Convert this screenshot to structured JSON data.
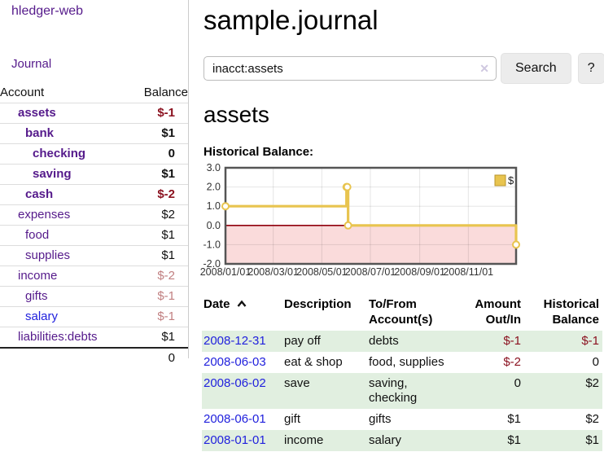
{
  "app": {
    "brand": "hledger-web"
  },
  "nav": {
    "journal": "Journal"
  },
  "sidebar": {
    "headers": {
      "account": "Account",
      "balance": "Balance"
    },
    "accounts": [
      {
        "name": "assets",
        "indent": 1,
        "bold": true,
        "balance": "$-1",
        "balance_style": "negative",
        "link_color": "purple"
      },
      {
        "name": "bank",
        "indent": 2,
        "bold": true,
        "balance": "$1",
        "balance_style": "normal",
        "link_color": "purple"
      },
      {
        "name": "checking",
        "indent": 3,
        "bold": true,
        "balance": "0",
        "balance_style": "normal",
        "link_color": "purple"
      },
      {
        "name": "saving",
        "indent": 3,
        "bold": true,
        "balance": "$1",
        "balance_style": "normal",
        "link_color": "purple"
      },
      {
        "name": "cash",
        "indent": 2,
        "bold": true,
        "balance": "$-2",
        "balance_style": "negative",
        "link_color": "purple"
      },
      {
        "name": "expenses",
        "indent": 1,
        "bold": false,
        "balance": "$2",
        "balance_style": "normal",
        "link_color": "purple"
      },
      {
        "name": "food",
        "indent": 2,
        "bold": false,
        "balance": "$1",
        "balance_style": "normal",
        "link_color": "purple"
      },
      {
        "name": "supplies",
        "indent": 2,
        "bold": false,
        "balance": "$1",
        "balance_style": "normal",
        "link_color": "purple"
      },
      {
        "name": "income",
        "indent": 1,
        "bold": false,
        "balance": "$-2",
        "balance_style": "negative-muted",
        "link_color": "purple"
      },
      {
        "name": "gifts",
        "indent": 2,
        "bold": false,
        "balance": "$-1",
        "balance_style": "negative-muted",
        "link_color": "purple"
      },
      {
        "name": "salary",
        "indent": 2,
        "bold": false,
        "balance": "$-1",
        "balance_style": "negative-muted",
        "link_color": "blue"
      },
      {
        "name": "liabilities:debts",
        "indent": 1,
        "bold": false,
        "balance": "$1",
        "balance_style": "normal",
        "link_color": "purple"
      }
    ],
    "total": "0"
  },
  "header": {
    "title": "sample.journal"
  },
  "search": {
    "value": "inacct:assets",
    "clear_icon": "✕",
    "button": "Search",
    "help": "?"
  },
  "account_page": {
    "title": "assets",
    "section_label": "Historical Balance:"
  },
  "chart_data": {
    "type": "line",
    "style": "step-after",
    "title": "Historical Balance",
    "xlim": [
      "2008-01-01",
      "2008-12-31"
    ],
    "ylim": [
      -2,
      3
    ],
    "y_ticks": [
      3,
      2,
      1,
      0,
      -1,
      -2
    ],
    "x_ticks": [
      {
        "date": "2008-01-01",
        "label": "2008/01/01"
      },
      {
        "date": "2008-03-01",
        "label": "2008/03/01"
      },
      {
        "date": "2008-05-01",
        "label": "2008/05/01"
      },
      {
        "date": "2008-07-01",
        "label": "2008/07/01"
      },
      {
        "date": "2008-09-01",
        "label": "2008/09/01"
      },
      {
        "date": "2008-11-01",
        "label": "2008/11/01"
      }
    ],
    "series": [
      {
        "name": "$",
        "color": "#e8c44f",
        "points": [
          [
            "2008-01-01",
            1
          ],
          [
            "2008-06-01",
            2
          ],
          [
            "2008-06-02",
            2
          ],
          [
            "2008-06-03",
            0
          ],
          [
            "2008-12-31",
            -1
          ]
        ]
      }
    ],
    "legend": {
      "label": "$",
      "position": "top-right"
    },
    "grid": true,
    "negative_region_color": "#fadbdb",
    "zero_line_color": "#90000e",
    "frame_color": "#555555"
  },
  "register": {
    "headers": {
      "date": "Date",
      "sort": "ascending",
      "description": "Description",
      "accounts": "To/From Account(s)",
      "amount": "Amount Out/In",
      "balance": "Historical Balance"
    },
    "rows": [
      {
        "date": "2008-12-31",
        "description": "pay off",
        "accounts": "debts",
        "amount": "$-1",
        "amount_negative": true,
        "balance": "$-1",
        "balance_negative": true
      },
      {
        "date": "2008-06-03",
        "description": "eat & shop",
        "accounts": "food, supplies",
        "amount": "$-2",
        "amount_negative": true,
        "balance": "0",
        "balance_negative": false
      },
      {
        "date": "2008-06-02",
        "description": "save",
        "accounts": "saving, checking",
        "amount": "0",
        "amount_negative": false,
        "balance": "$2",
        "balance_negative": false
      },
      {
        "date": "2008-06-01",
        "description": "gift",
        "accounts": "gifts",
        "amount": "$1",
        "amount_negative": false,
        "balance": "$2",
        "balance_negative": false
      },
      {
        "date": "2008-01-01",
        "description": "income",
        "accounts": "salary",
        "amount": "$1",
        "amount_negative": false,
        "balance": "$1",
        "balance_negative": false
      }
    ]
  },
  "colors": {
    "purple_link": "#551a8b",
    "blue_link": "#2121dd",
    "negative": "#8b1220",
    "negative_muted": "#c17f80",
    "stripe_green": "#e1efe0",
    "button_bg": "#ececec"
  }
}
